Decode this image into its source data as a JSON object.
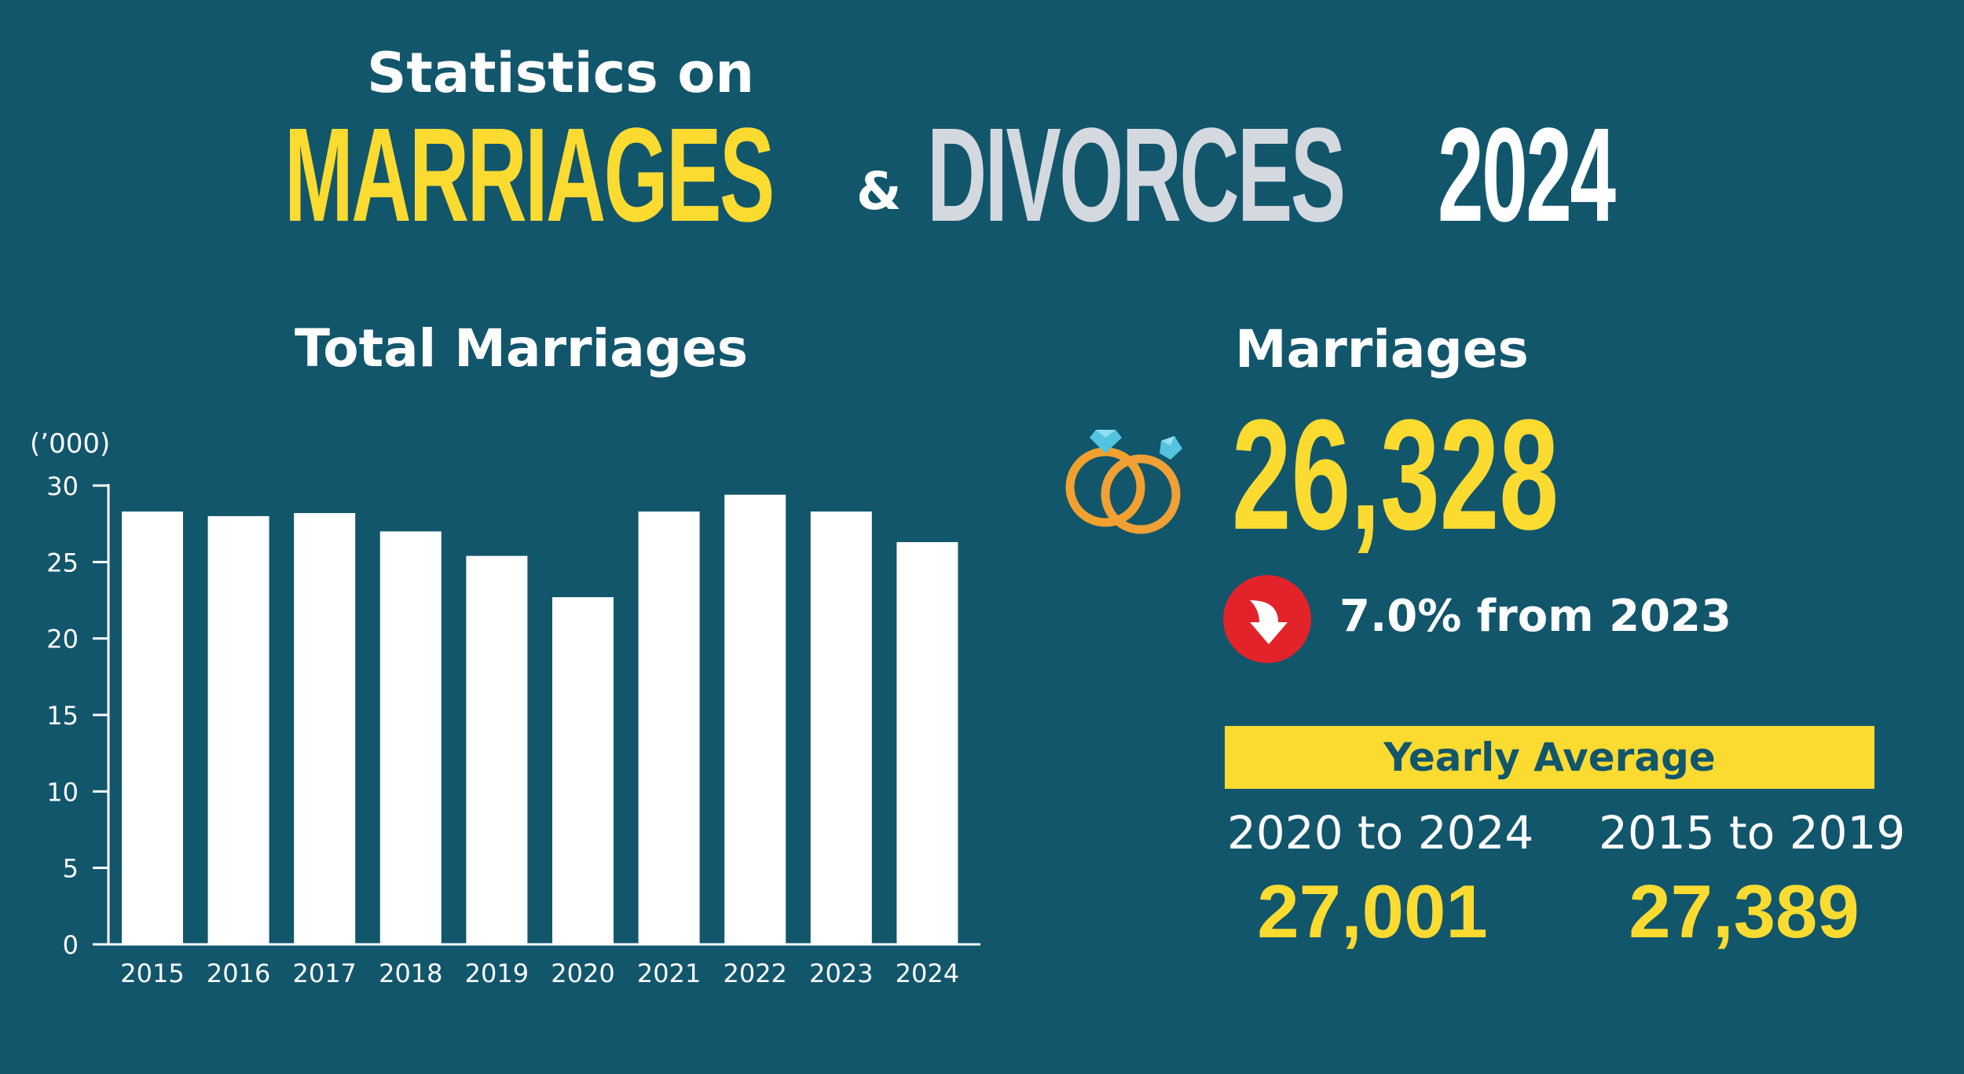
{
  "header": {
    "subtitle": "Statistics on",
    "word_marriages": "MARRIAGES",
    "ampersand": "&",
    "word_divorces": "DIVORCES",
    "year": "2024"
  },
  "colors": {
    "background": "#12566c",
    "yellow": "#fcdb31",
    "light_gray": "#d4d9df",
    "white": "#ffffff",
    "red": "#e3232a",
    "ring_orange": "#f2a12e",
    "diamond_blue": "#52c4e0"
  },
  "chart_title": "Total Marriages",
  "chart_data": {
    "type": "bar",
    "title": "Total Marriages",
    "unit_label": "(’000)",
    "categories": [
      "2015",
      "2016",
      "2017",
      "2018",
      "2019",
      "2020",
      "2021",
      "2022",
      "2023",
      "2024"
    ],
    "values": [
      28.3,
      28.0,
      28.2,
      27.0,
      25.4,
      22.7,
      28.3,
      29.4,
      28.3,
      26.3
    ],
    "ylim": [
      0,
      30
    ],
    "yticks": [
      "0",
      "5",
      "10",
      "15",
      "20",
      "25",
      "30"
    ],
    "grid": false,
    "bar_color": "#ffffff"
  },
  "stats": {
    "heading": "Marriages",
    "total": "26,328",
    "icon": "wedding-rings-icon",
    "change_icon": "down-arrow-icon",
    "change_text": "7.0% from 2023"
  },
  "average": {
    "title": "Yearly Average",
    "periods": [
      {
        "label": "2020 to 2024",
        "value": "27,001"
      },
      {
        "label": "2015 to 2019",
        "value": "27,389"
      }
    ]
  }
}
